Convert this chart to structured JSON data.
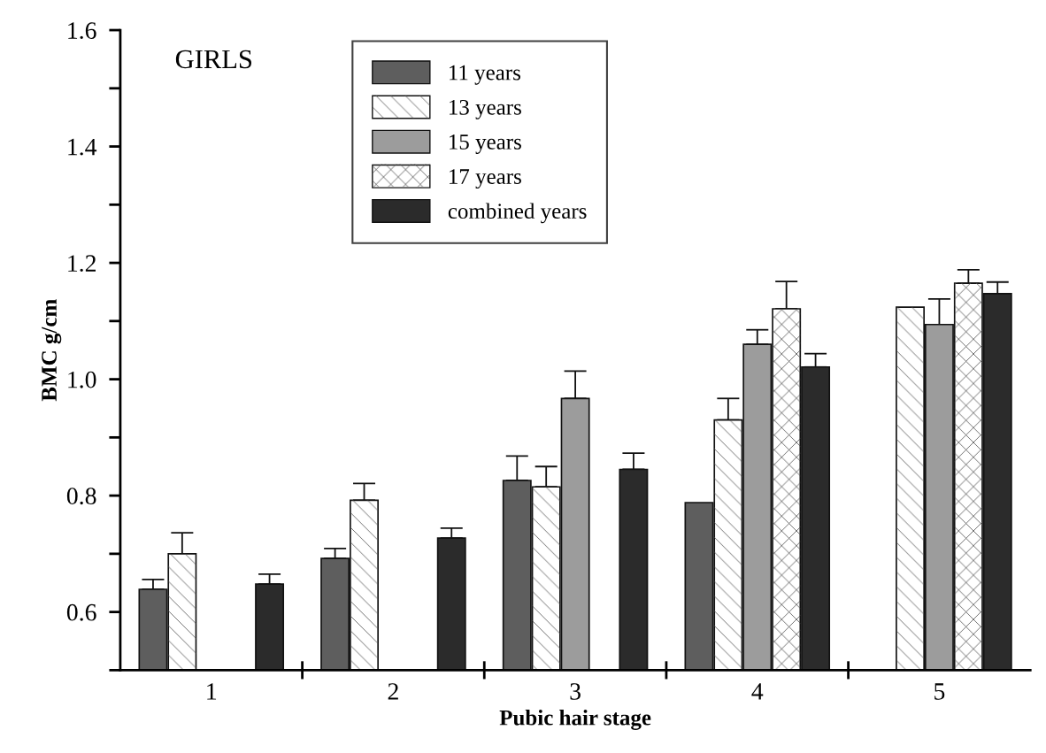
{
  "chart_data": {
    "type": "bar",
    "title": "GIRLS",
    "xlabel": "Pubic hair stage",
    "ylabel": "BMC g/cm",
    "categories": [
      "1",
      "2",
      "3",
      "4",
      "5"
    ],
    "ylim": [
      0.5,
      1.6
    ],
    "yticks": [
      {
        "value": 0.5,
        "label": null
      },
      0.6,
      {
        "value": 0.7,
        "label": null
      },
      0.8,
      {
        "value": 0.9,
        "label": null
      },
      {
        "value": 1.0,
        "label": "1.0"
      },
      {
        "value": 1.1,
        "label": null
      },
      1.2,
      {
        "value": 1.3,
        "label": null
      },
      1.4,
      {
        "value": 1.5,
        "label": null
      },
      1.6
    ],
    "legend": "top",
    "grid": false,
    "series": [
      {
        "name": "11 years",
        "color": "#5e5e5e",
        "values": [
          0.639,
          0.692,
          0.826,
          0.788,
          null
        ],
        "errors": [
          [
            0.639,
            0.656
          ],
          [
            0.692,
            0.709
          ],
          [
            0.826,
            0.868
          ],
          null,
          null
        ]
      },
      {
        "name": "13 years",
        "color": "#ffffff",
        "values": [
          0.7,
          0.792,
          0.815,
          0.93,
          1.124
        ],
        "errors": [
          [
            0.7,
            0.736
          ],
          [
            0.792,
            0.821
          ],
          [
            0.815,
            0.85
          ],
          [
            0.93,
            0.967
          ],
          null
        ]
      },
      {
        "name": "15 years",
        "color": "#9c9c9c",
        "values": [
          null,
          null,
          0.967,
          1.06,
          1.094
        ],
        "errors": [
          null,
          null,
          [
            0.967,
            1.014
          ],
          [
            1.06,
            1.085
          ],
          [
            1.094,
            1.138
          ]
        ]
      },
      {
        "name": "17 years",
        "color": "#ffffff",
        "values": [
          null,
          null,
          null,
          1.121,
          1.165
        ],
        "errors": [
          null,
          null,
          null,
          [
            1.121,
            1.168
          ],
          [
            1.165,
            1.188
          ]
        ]
      },
      {
        "name": "combined years",
        "color": "#2b2b2b",
        "values": [
          0.648,
          0.727,
          0.845,
          1.021,
          1.147
        ],
        "errors": [
          [
            0.648,
            0.665
          ],
          [
            0.727,
            0.744
          ],
          [
            0.845,
            0.873
          ],
          [
            1.021,
            1.044
          ],
          [
            1.147,
            1.167
          ]
        ]
      }
    ]
  }
}
